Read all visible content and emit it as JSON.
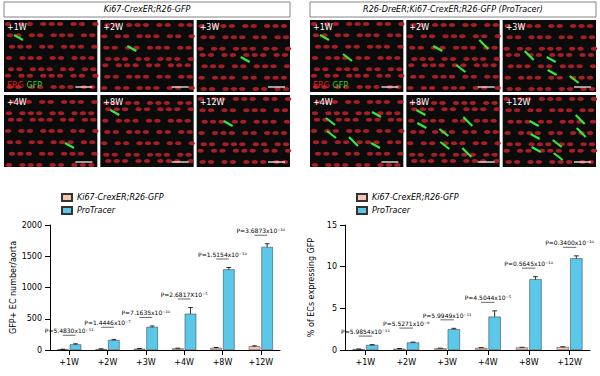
{
  "image_panels": [
    {
      "title": "Ki67-CrexER;R26-GFP",
      "tiles": [
        "+1W",
        "+2W",
        "+3W",
        "+4W",
        "+8W",
        "+12W"
      ],
      "stain_labels": [
        {
          "text": "ERG",
          "color": "#e0201b"
        },
        {
          "text": "GFP",
          "color": "#2fd02f"
        }
      ]
    },
    {
      "title": "R26-DreER;Ki67-CrexER;R26-GFP (ProTracer)",
      "tiles": [
        "+1W",
        "+2W",
        "+3W",
        "+4W",
        "+8W",
        "+12W"
      ],
      "stain_labels": [
        {
          "text": "ERG",
          "color": "#e0201b"
        },
        {
          "text": "GFP",
          "color": "#2fd02f"
        }
      ]
    }
  ],
  "chart_data": [
    {
      "type": "bar",
      "y_label": "GFP+ EC number/aorta",
      "categories": [
        "+1W",
        "+2W",
        "+3W",
        "+4W",
        "+8W",
        "+12W"
      ],
      "series": [
        {
          "name": "Ki67-CrexER;R26-GFP",
          "color": "#f7c6ad",
          "values": [
            10,
            15,
            20,
            25,
            35,
            60
          ],
          "errors": [
            3,
            3,
            4,
            5,
            5,
            8
          ]
        },
        {
          "name": "ProTracer",
          "color": "#5bc8ea",
          "values": [
            90,
            160,
            370,
            580,
            1290,
            1650
          ],
          "errors": [
            10,
            10,
            15,
            100,
            30,
            50
          ]
        }
      ],
      "annotations": [
        "P=5.4830x10⁻¹¹",
        "P=1.4446x10⁻⁷",
        "P=7.1635x10⁻¹⁰",
        "P=2.6817X10⁻⁵",
        "P=1.5154x10⁻¹⁰",
        "P=3.6873x10⁻¹⁰"
      ],
      "ylim": [
        0,
        2000
      ],
      "yticks": [
        0,
        500,
        1000,
        1500,
        2000
      ],
      "grid": false,
      "legend": "top left"
    },
    {
      "type": "bar",
      "y_label": "% of ECs expressing GFP",
      "categories": [
        "+1W",
        "+2W",
        "+3W",
        "+4W",
        "+8W",
        "+12W"
      ],
      "series": [
        {
          "name": "Ki67-CrexER;R26-GFP",
          "color": "#f7c6ad",
          "values": [
            0.1,
            0.15,
            0.2,
            0.25,
            0.3,
            0.35
          ],
          "errors": [
            0.02,
            0.02,
            0.02,
            0.03,
            0.03,
            0.04
          ]
        },
        {
          "name": "ProTracer",
          "color": "#5bc8ea",
          "values": [
            0.6,
            0.9,
            2.5,
            4.0,
            8.5,
            11.0
          ],
          "errors": [
            0.05,
            0.05,
            0.1,
            0.7,
            0.3,
            0.3
          ]
        }
      ],
      "annotations": [
        "P=5.9854x10⁻¹¹",
        "P=5.5271x10⁻⁹",
        "P=5.9949x10⁻¹¹",
        "P=4.5044x10⁻⁵",
        "P=0.5645x10⁻¹⁰",
        "P=0.3400x10⁻¹⁰"
      ],
      "ylim": [
        0,
        15
      ],
      "yticks": [
        0,
        5,
        10,
        15
      ],
      "grid": false,
      "legend": "top left"
    }
  ]
}
